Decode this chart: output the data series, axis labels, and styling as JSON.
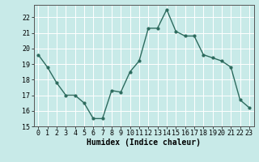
{
  "x": [
    0,
    1,
    2,
    3,
    4,
    5,
    6,
    7,
    8,
    9,
    10,
    11,
    12,
    13,
    14,
    15,
    16,
    17,
    18,
    19,
    20,
    21,
    22,
    23
  ],
  "y": [
    19.6,
    18.8,
    17.8,
    17.0,
    17.0,
    16.5,
    15.5,
    15.5,
    17.3,
    17.2,
    18.5,
    19.2,
    21.3,
    21.3,
    22.5,
    21.1,
    20.8,
    20.8,
    19.6,
    19.4,
    19.2,
    18.8,
    16.7,
    16.2
  ],
  "line_color": "#2d6b5e",
  "marker": "o",
  "markersize": 2,
  "linewidth": 1.0,
  "xlabel": "Humidex (Indice chaleur)",
  "ylim": [
    15,
    22.8
  ],
  "xlim": [
    -0.5,
    23.5
  ],
  "yticks": [
    15,
    16,
    17,
    18,
    19,
    20,
    21,
    22
  ],
  "xticks": [
    0,
    1,
    2,
    3,
    4,
    5,
    6,
    7,
    8,
    9,
    10,
    11,
    12,
    13,
    14,
    15,
    16,
    17,
    18,
    19,
    20,
    21,
    22,
    23
  ],
  "xtick_labels": [
    "0",
    "1",
    "2",
    "3",
    "4",
    "5",
    "6",
    "7",
    "8",
    "9",
    "10",
    "11",
    "12",
    "13",
    "14",
    "15",
    "16",
    "17",
    "18",
    "19",
    "20",
    "21",
    "22",
    "23"
  ],
  "background_color": "#c8eae8",
  "grid_color": "#ffffff",
  "grid_linewidth": 0.7,
  "tick_fontsize": 6,
  "xlabel_fontsize": 7
}
